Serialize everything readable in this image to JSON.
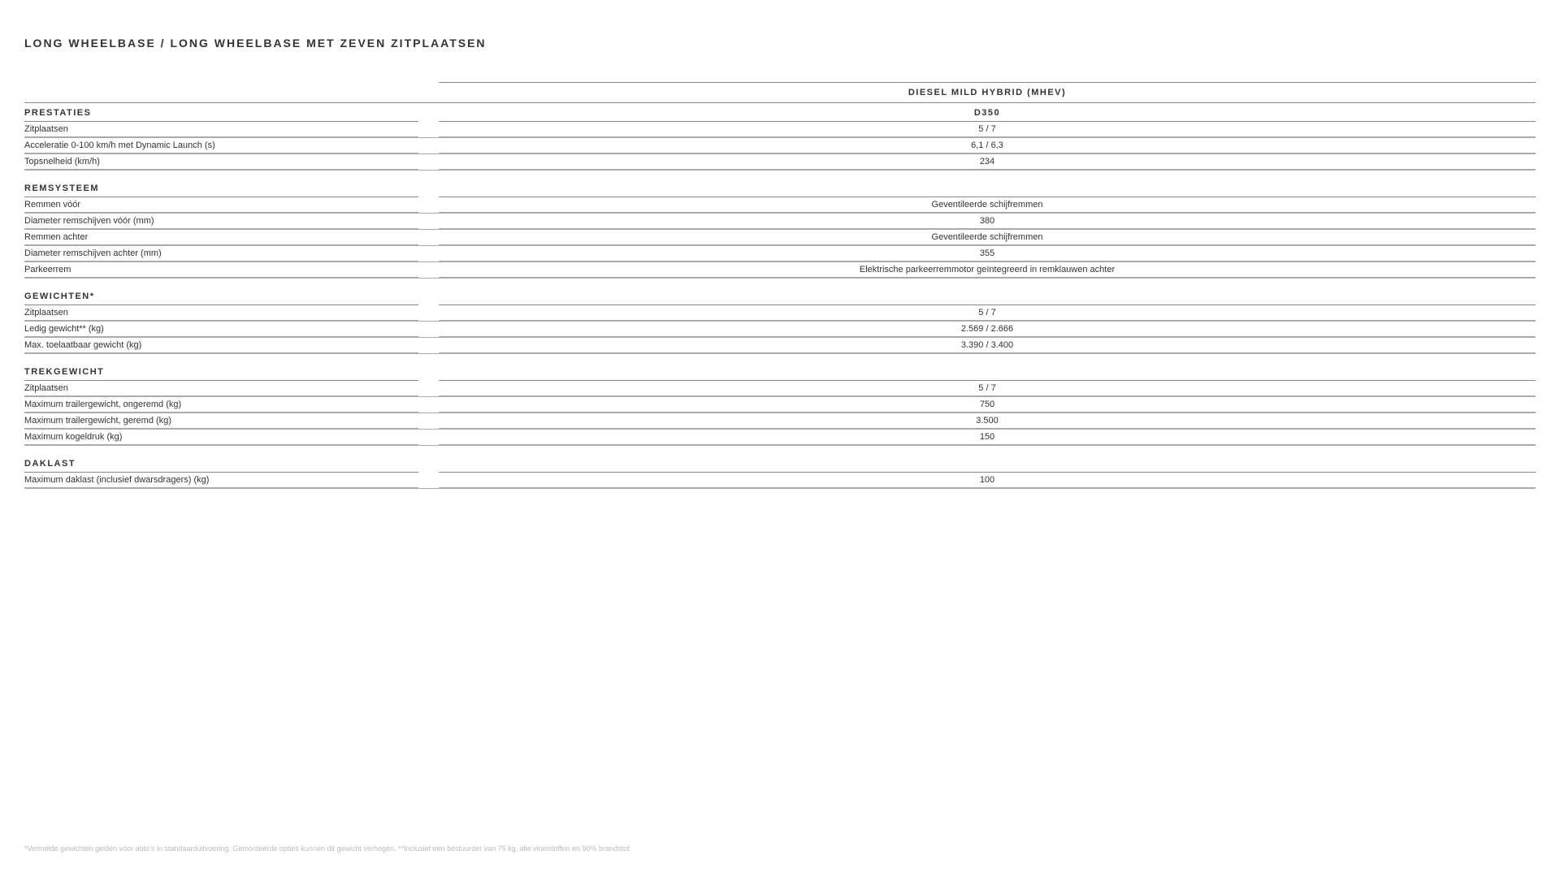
{
  "page_title": "LONG WHEELBASE / LONG WHEELBASE MET ZEVEN ZITPLAATSEN",
  "column_header_1": "DIESEL MILD HYBRID (MHEV)",
  "column_header_2": "D350",
  "sections": {
    "prestaties": {
      "title": "PRESTATIES",
      "rows": [
        {
          "label": "Zitplaatsen",
          "value": "5 / 7"
        },
        {
          "label": "Acceleratie 0-100 km/h met Dynamic Launch (s)",
          "value": "6,1 / 6,3"
        },
        {
          "label": "Topsnelheid (km/h)",
          "value": "234"
        }
      ]
    },
    "remsysteem": {
      "title": "REMSYSTEEM",
      "rows": [
        {
          "label": "Remmen vóór",
          "value": "Geventileerde schijfremmen"
        },
        {
          "label": "Diameter remschijven vóór (mm)",
          "value": "380"
        },
        {
          "label": "Remmen achter",
          "value": "Geventileerde schijfremmen"
        },
        {
          "label": "Diameter remschijven achter (mm)",
          "value": "355"
        },
        {
          "label": "Parkeerrem",
          "value": "Elektrische parkeerremmotor geïntegreerd in remklauwen achter"
        }
      ]
    },
    "gewichten": {
      "title": "GEWICHTEN*",
      "rows": [
        {
          "label": "Zitplaatsen",
          "value": "5 / 7"
        },
        {
          "label": "Ledig gewicht** (kg)",
          "value": "2.569 / 2.666"
        },
        {
          "label": "Max. toelaatbaar gewicht (kg)",
          "value": "3.390 / 3.400"
        }
      ]
    },
    "trekgewicht": {
      "title": "TREKGEWICHT",
      "rows": [
        {
          "label": "Zitplaatsen",
          "value": "5 / 7"
        },
        {
          "label": "Maximum trailergewicht, ongeremd (kg)",
          "value": "750"
        },
        {
          "label": "Maximum trailergewicht, geremd (kg)",
          "value": "3.500"
        },
        {
          "label": "Maximum kogeldruk (kg)",
          "value": "150"
        }
      ]
    },
    "daklast": {
      "title": "DAKLAST",
      "rows": [
        {
          "label": "Maximum daklast (inclusief dwarsdragers) (kg)",
          "value": "100"
        }
      ]
    }
  },
  "footnote": "*Vermelde gewichten gelden voor auto's in standaarduitvoering. Gemonteerde opties kunnen dit gewicht verhogen.  **Inclusief een bestuurder van 75 kg, alle vloeistoffen en 90% brandstof."
}
